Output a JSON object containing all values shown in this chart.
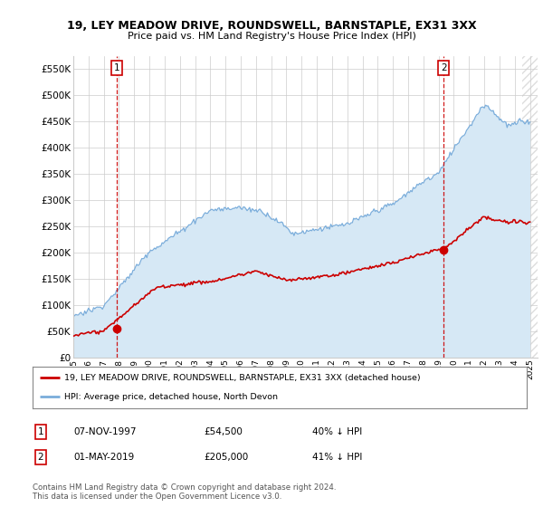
{
  "title": "19, LEY MEADOW DRIVE, ROUNDSWELL, BARNSTAPLE, EX31 3XX",
  "subtitle": "Price paid vs. HM Land Registry's House Price Index (HPI)",
  "legend_line1": "19, LEY MEADOW DRIVE, ROUNDSWELL, BARNSTAPLE, EX31 3XX (detached house)",
  "legend_line2": "HPI: Average price, detached house, North Devon",
  "annotation1_date": "07-NOV-1997",
  "annotation1_price": "£54,500",
  "annotation1_hpi": "40% ↓ HPI",
  "annotation2_date": "01-MAY-2019",
  "annotation2_price": "£205,000",
  "annotation2_hpi": "41% ↓ HPI",
  "footer": "Contains HM Land Registry data © Crown copyright and database right 2024.\nThis data is licensed under the Open Government Licence v3.0.",
  "hpi_color": "#7aaddb",
  "hpi_fill_color": "#d6e8f5",
  "price_color": "#cc0000",
  "marker_color": "#cc0000",
  "vline_color": "#cc0000",
  "ylim": [
    0,
    575000
  ],
  "yticks": [
    0,
    50000,
    100000,
    150000,
    200000,
    250000,
    300000,
    350000,
    400000,
    450000,
    500000,
    550000
  ],
  "t1": 1997.854,
  "t2": 2019.331,
  "p1": 54500,
  "p2": 205000
}
